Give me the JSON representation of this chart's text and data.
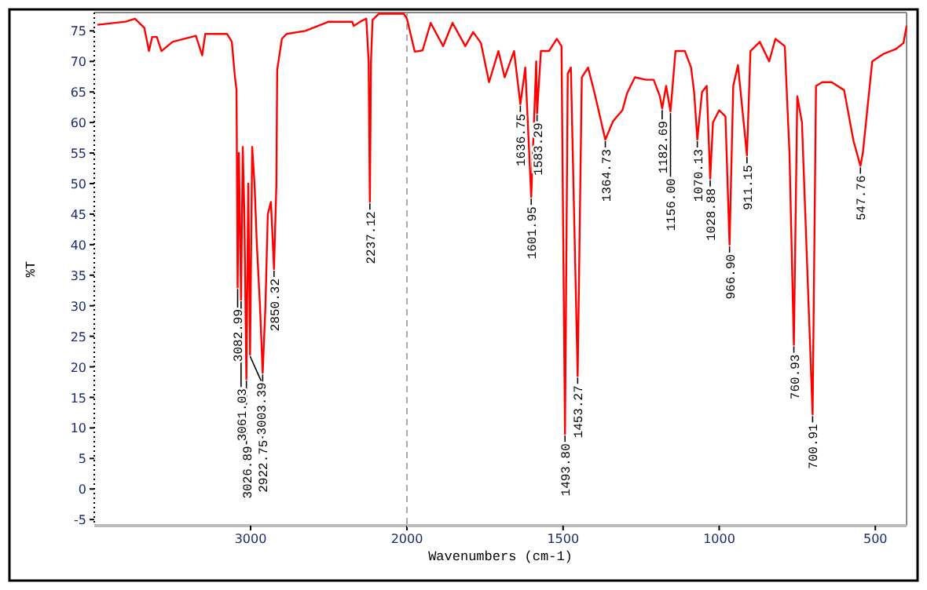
{
  "chart_data": [
    {
      "type": "line",
      "ylabel": "%T",
      "xlim": [
        4000,
        2000
      ],
      "ylim": [
        -6,
        78
      ],
      "xticks": [
        3000,
        2000
      ],
      "yticks": [
        -5,
        0,
        5,
        10,
        15,
        20,
        25,
        30,
        35,
        40,
        45,
        50,
        55,
        60,
        65,
        70,
        75
      ],
      "ref_lines": [
        {
          "axis": "x",
          "value": 2000,
          "color": "#aaaaaa",
          "line_style": "dashed"
        }
      ],
      "series": [
        {
          "color": "#ff0000",
          "x": [
            3980,
            3800,
            3740,
            3680,
            3650,
            3630,
            3600,
            3570,
            3500,
            3350,
            3310,
            3290,
            3150,
            3120,
            3100,
            3090,
            3082.99,
            3075,
            3061.03,
            3050,
            3040,
            3026.89,
            3015,
            3003.39,
            2990,
            2975,
            2960,
            2940,
            2922.75,
            2905,
            2890,
            2870,
            2850.32,
            2835,
            2830,
            2800,
            2770,
            2650,
            2500,
            2350,
            2340,
            2300,
            2260,
            2245,
            2237.12,
            2230,
            2220,
            2180,
            2020,
            2000
          ],
          "values": [
            76,
            76.5,
            77,
            75.5,
            71.7,
            74,
            74,
            71.7,
            73.2,
            74.2,
            71,
            74.5,
            74.5,
            73.2,
            67.4,
            65.3,
            33,
            55,
            31,
            56,
            45,
            18,
            50,
            22,
            56,
            50,
            40,
            30,
            19,
            30,
            45,
            47,
            36,
            50,
            68.6,
            73.7,
            74.5,
            75,
            76.5,
            76.5,
            75.8,
            76.5,
            77,
            70,
            47,
            70,
            76.8,
            77.8,
            77.8,
            77
          ]
        }
      ],
      "annotations": [
        {
          "text": "3082.99",
          "x": 3082.99,
          "y": 33
        },
        {
          "text": "3061.03",
          "x": 3061.03,
          "y": 31
        },
        {
          "text": "3026.89",
          "x": 3026.89,
          "y": 18
        },
        {
          "text": "3003.39",
          "x": 3003.39,
          "y": 22
        },
        {
          "text": "2922.75",
          "x": 2922.75,
          "y": 19
        },
        {
          "text": "2850.32",
          "x": 2850.32,
          "y": 36
        },
        {
          "text": "2237.12",
          "x": 2237.12,
          "y": 47
        }
      ]
    },
    {
      "type": "line",
      "xlabel": "Wavenumbers (cm-1)",
      "xlim": [
        2000,
        400
      ],
      "ylim": [
        -6,
        78
      ],
      "xticks": [
        1500,
        1000,
        500
      ],
      "tick_labels": "x",
      "series": [
        {
          "color": "#ff0000",
          "x": [
            2000,
            1975,
            1950,
            1924,
            1884,
            1854,
            1813,
            1788,
            1763,
            1737,
            1707,
            1687,
            1657,
            1636.75,
            1621,
            1601.95,
            1586,
            1583.29,
            1571,
            1545,
            1520,
            1505,
            1493.8,
            1485,
            1475,
            1453.27,
            1440,
            1420,
            1400,
            1364.73,
            1340,
            1310,
            1295,
            1270,
            1235,
            1210,
            1190,
            1182.69,
            1170,
            1156,
            1140,
            1110,
            1090,
            1080,
            1070.13,
            1055,
            1040,
            1028.88,
            1020,
            1000,
            980,
            966.9,
            955,
            940,
            911.15,
            900,
            870,
            840,
            820,
            790,
            775,
            760.93,
            750,
            735,
            700.91,
            690,
            670,
            640,
            600,
            570,
            547.76,
            540,
            510,
            475,
            435,
            410,
            400
          ],
          "values": [
            77,
            71.6,
            71.8,
            76.3,
            72.5,
            76.3,
            72.5,
            74.8,
            73,
            66.6,
            71.7,
            67.4,
            71.7,
            63,
            69,
            47.8,
            70,
            61.5,
            71.7,
            71.7,
            73.7,
            72.5,
            9,
            68,
            69,
            18.5,
            67.4,
            69,
            65,
            57.2,
            60.2,
            62,
            64.8,
            67.4,
            67,
            67,
            64.3,
            62.3,
            66,
            61.8,
            71.7,
            71.7,
            69,
            64.8,
            57.2,
            65,
            66,
            50.8,
            60,
            62,
            61,
            40,
            66,
            69.4,
            54.6,
            71.7,
            73.2,
            70,
            73.7,
            72.5,
            55,
            23.6,
            64.3,
            60,
            12.2,
            66,
            66.6,
            66.6,
            65.3,
            57,
            52.9,
            55,
            70,
            71.2,
            72,
            73,
            75.8
          ]
        }
      ],
      "annotations": [
        {
          "text": "1636.75",
          "x": 1636.75,
          "y": 63
        },
        {
          "text": "1601.95",
          "x": 1601.95,
          "y": 47.8
        },
        {
          "text": "1583.29",
          "x": 1583.29,
          "y": 61.5
        },
        {
          "text": "1493.80",
          "x": 1493.8,
          "y": 9
        },
        {
          "text": "1453.27",
          "x": 1453.27,
          "y": 18.5
        },
        {
          "text": "1364.73",
          "x": 1364.73,
          "y": 57.2
        },
        {
          "text": "1182.69",
          "x": 1182.69,
          "y": 62.3
        },
        {
          "text": "1156.00",
          "x": 1156,
          "y": 61.8
        },
        {
          "text": "1070.13",
          "x": 1070.13,
          "y": 57.2
        },
        {
          "text": "1028.88",
          "x": 1028.88,
          "y": 50.8
        },
        {
          "text": "966.90",
          "x": 966.9,
          "y": 40
        },
        {
          "text": "911.15",
          "x": 911.15,
          "y": 54.6
        },
        {
          "text": "760.93",
          "x": 760.93,
          "y": 23.6
        },
        {
          "text": "700.91",
          "x": 700.91,
          "y": 12.2
        },
        {
          "text": "547.76",
          "x": 547.76,
          "y": 52.9
        }
      ]
    }
  ]
}
